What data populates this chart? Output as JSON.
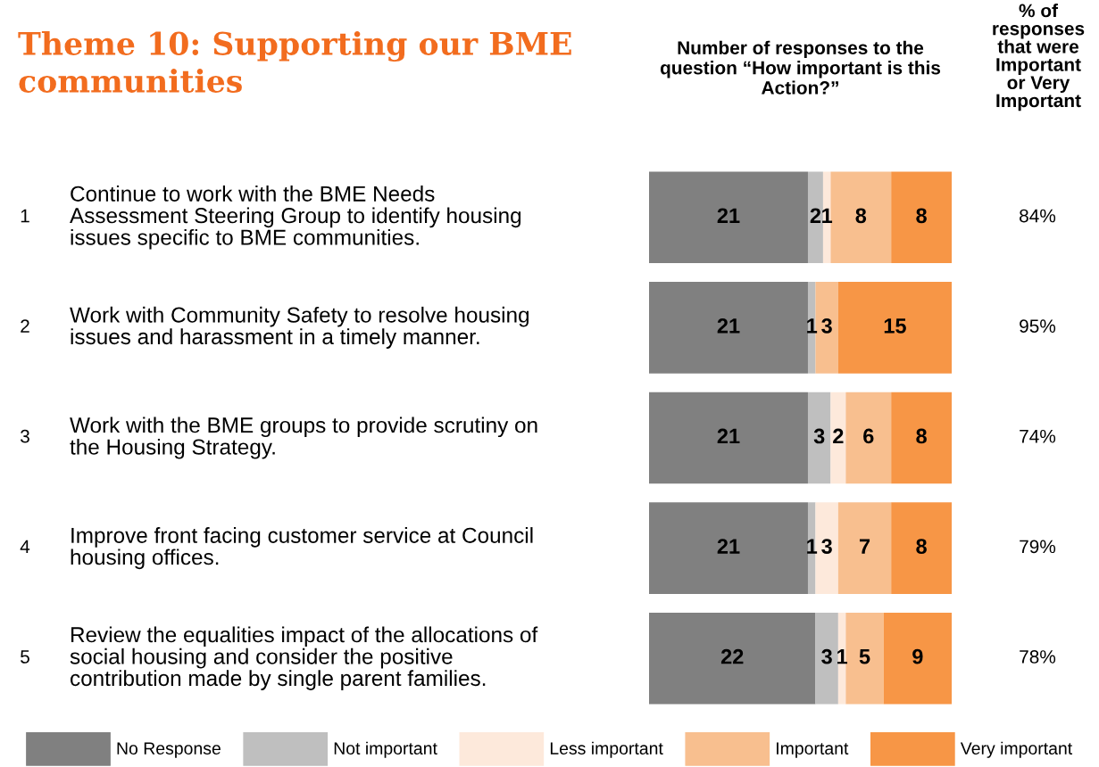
{
  "chart_data": {
    "type": "bar",
    "orientation": "horizontal",
    "stacked": true,
    "title": "Theme 10: Supporting our BME\ncommunities",
    "xlabel": "Number of responses to the\nquestion “How important is this\nAction?”",
    "categories": [
      "Continue to work with the BME Needs\nAssessment Steering Group to identify housing\nissues specific to BME communities.",
      "Work with Community Safety to resolve housing\nissues and harassment in a timely manner.",
      "Work with the BME groups to provide scrutiny on\nthe Housing Strategy.",
      "Improve front facing customer service at Council\nhousing offices.",
      "Review the equalities impact of the allocations of\nsocial housing and consider the positive\ncontribution made by single parent families."
    ],
    "series": [
      {
        "name": "No Response",
        "color": "#808080",
        "values": [
          21,
          21,
          21,
          21,
          22
        ],
        "value_labels": [
          "21",
          "21",
          "21",
          "21",
          "22"
        ]
      },
      {
        "name": "Not important",
        "color": "#bfbfbf",
        "values": [
          2,
          1,
          3,
          1,
          3
        ],
        "value_labels": [
          "2",
          "1",
          "3",
          "1",
          "3"
        ]
      },
      {
        "name": "Less important",
        "color": "#fde9db",
        "values": [
          1,
          0,
          2,
          3,
          1
        ],
        "value_labels": [
          "1",
          null,
          "2",
          "3",
          "1"
        ]
      },
      {
        "name": "Important",
        "color": "#f8bf8f",
        "values": [
          8,
          3,
          6,
          7,
          5
        ],
        "value_labels": [
          "8",
          "3",
          "6",
          "7",
          "5"
        ]
      },
      {
        "name": "Very important",
        "color": "#f79646",
        "values": [
          8,
          15,
          8,
          8,
          9
        ],
        "value_labels": [
          "8",
          "15",
          "8",
          "8",
          "9"
        ]
      }
    ],
    "annotations": [
      "% of\nresponses\nthat were\nImportant\nor Very\nImportant",
      "1",
      "2",
      "3",
      "4",
      "5",
      "84%",
      "95%",
      "74%",
      "79%",
      "78%"
    ],
    "legend": "bottom"
  }
}
